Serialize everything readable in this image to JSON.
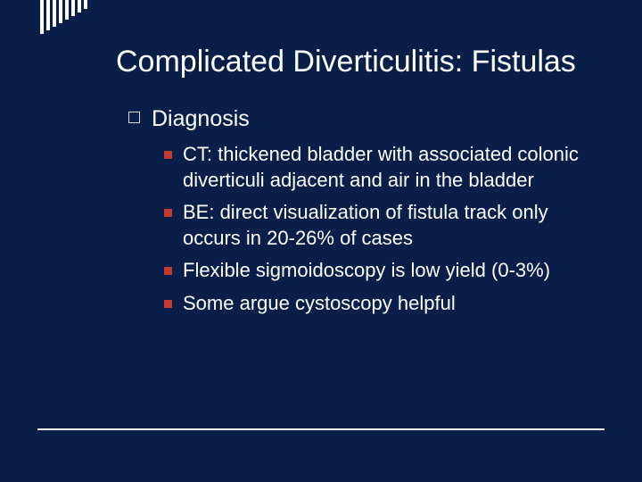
{
  "background_color": "#0a1e4a",
  "text_color": "#ffffff",
  "accent_color": "#c43c2e",
  "outline_bullet_border": "#d9d9d9",
  "corner_bars": [
    38,
    34,
    30,
    26,
    22,
    18,
    14,
    10
  ],
  "title": "Complicated Diverticulitis: Fistulas",
  "section": {
    "heading": "Diagnosis",
    "items": [
      "CT: thickened bladder with associated colonic diverticuli adjacent and air in the bladder",
      "BE: direct visualization of fistula track only occurs in 20-26% of cases",
      "Flexible sigmoidoscopy is low yield (0-3%)",
      "Some argue cystoscopy helpful"
    ]
  },
  "title_fontsize": 34,
  "level1_fontsize": 25,
  "level2_fontsize": 22
}
